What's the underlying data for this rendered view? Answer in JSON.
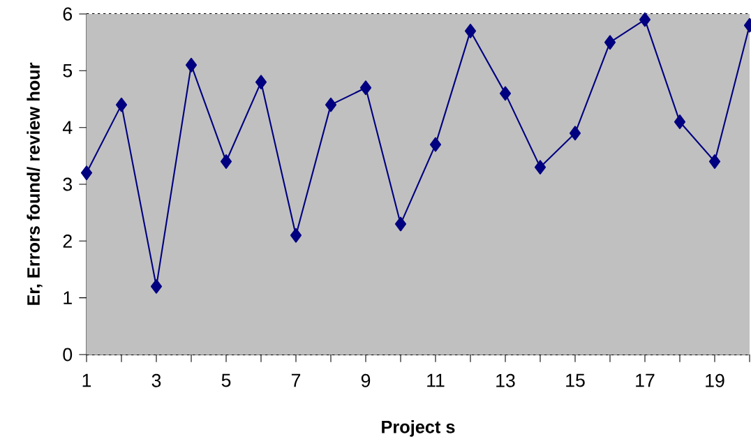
{
  "chart_data": {
    "type": "line",
    "xlabel": "Project s",
    "ylabel": "Er, Errors found/ review hour",
    "categories": [
      "1",
      null,
      "3",
      null,
      "5",
      null,
      "7",
      null,
      "9",
      null,
      "11",
      null,
      "13",
      null,
      "15",
      null,
      "17",
      null,
      "19",
      null
    ],
    "series": [
      {
        "color": "#000080",
        "values": [
          3.2,
          4.4,
          1.2,
          5.1,
          3.4,
          4.8,
          2.1,
          4.4,
          4.7,
          2.3,
          3.7,
          5.7,
          4.6,
          3.3,
          3.9,
          5.5,
          5.9,
          4.1,
          3.4,
          5.8
        ]
      }
    ],
    "ylim": [
      0,
      6
    ],
    "yticks": [
      0,
      1,
      2,
      3,
      4,
      5,
      6
    ],
    "grid": "y",
    "marker": "diamond",
    "line_style": "solid"
  }
}
